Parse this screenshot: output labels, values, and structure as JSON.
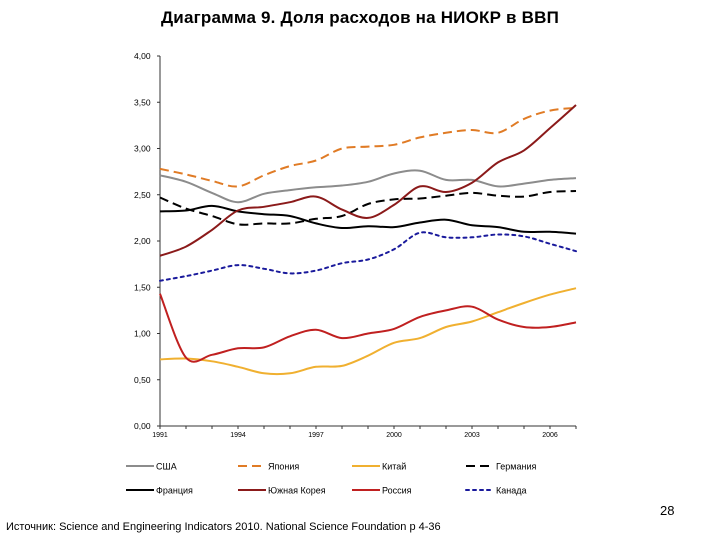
{
  "page": {
    "title": "Диаграмма 9. Доля расходов на НИОКР в ВВП",
    "page_number": "28",
    "source": "Источник: Science and Engineering Indicators 2010. National Science Foundation  p 4-36"
  },
  "chart_data": {
    "type": "line",
    "title": "",
    "xlabel": "",
    "ylabel": "",
    "xlim": [
      1991,
      2007
    ],
    "ylim": [
      0,
      4
    ],
    "x_ticks": [
      1991,
      1994,
      1997,
      2000,
      2003,
      2006
    ],
    "x_tick_labels": [
      "1991",
      "1994",
      "1997",
      "2000",
      "2003",
      "2006"
    ],
    "y_ticks": [
      0,
      0.5,
      1,
      1.5,
      2,
      2.5,
      3,
      3.5,
      4
    ],
    "y_tick_labels": [
      "0,00",
      "0,50",
      "1,00",
      "1,50",
      "2,00",
      "2,50",
      "3,00",
      "3,50",
      "4,00"
    ],
    "grid": false,
    "legend_position": "bottom",
    "x": [
      1991,
      1992,
      1993,
      1994,
      1995,
      1996,
      1997,
      1998,
      1999,
      2000,
      2001,
      2002,
      2003,
      2004,
      2005,
      2006,
      2007
    ],
    "series": [
      {
        "name": "США",
        "color": "#8c8c8c",
        "dash": "solid",
        "values": [
          2.71,
          2.64,
          2.52,
          2.42,
          2.51,
          2.55,
          2.58,
          2.6,
          2.64,
          2.73,
          2.76,
          2.66,
          2.66,
          2.59,
          2.62,
          2.66,
          2.68
        ]
      },
      {
        "name": "Япония",
        "color": "#e07b25",
        "dash": "long",
        "values": [
          2.78,
          2.72,
          2.65,
          2.59,
          2.71,
          2.81,
          2.87,
          3.0,
          3.02,
          3.04,
          3.12,
          3.17,
          3.2,
          3.17,
          3.32,
          3.41,
          3.44
        ]
      },
      {
        "name": "Китай",
        "color": "#f0b030",
        "dash": "solid",
        "values": [
          0.72,
          0.73,
          0.7,
          0.64,
          0.57,
          0.57,
          0.64,
          0.65,
          0.76,
          0.9,
          0.95,
          1.07,
          1.13,
          1.23,
          1.33,
          1.42,
          1.49
        ]
      },
      {
        "name": "Германия",
        "color": "#000000",
        "dash": "long",
        "values": [
          2.47,
          2.35,
          2.27,
          2.18,
          2.19,
          2.19,
          2.24,
          2.27,
          2.4,
          2.45,
          2.46,
          2.49,
          2.52,
          2.49,
          2.48,
          2.53,
          2.54
        ]
      },
      {
        "name": "Франция",
        "color": "#000000",
        "dash": "solid",
        "values": [
          2.32,
          2.33,
          2.38,
          2.32,
          2.29,
          2.27,
          2.19,
          2.14,
          2.16,
          2.15,
          2.2,
          2.23,
          2.17,
          2.15,
          2.1,
          2.1,
          2.08
        ]
      },
      {
        "name": "Южная Корея",
        "color": "#8b1a1a",
        "dash": "solid",
        "values": [
          1.84,
          1.94,
          2.12,
          2.33,
          2.37,
          2.42,
          2.48,
          2.34,
          2.25,
          2.39,
          2.59,
          2.53,
          2.63,
          2.85,
          2.98,
          3.22,
          3.47
        ]
      },
      {
        "name": "Россия",
        "color": "#c02020",
        "dash": "solid",
        "values": [
          1.43,
          0.74,
          0.77,
          0.84,
          0.85,
          0.97,
          1.04,
          0.95,
          1.0,
          1.05,
          1.18,
          1.25,
          1.29,
          1.15,
          1.07,
          1.07,
          1.12
        ]
      },
      {
        "name": "Канада",
        "color": "#1a1a9c",
        "dash": "dotted",
        "values": [
          1.57,
          1.62,
          1.68,
          1.74,
          1.7,
          1.65,
          1.68,
          1.76,
          1.8,
          1.91,
          2.09,
          2.04,
          2.04,
          2.07,
          2.05,
          1.97,
          1.89
        ]
      }
    ]
  }
}
